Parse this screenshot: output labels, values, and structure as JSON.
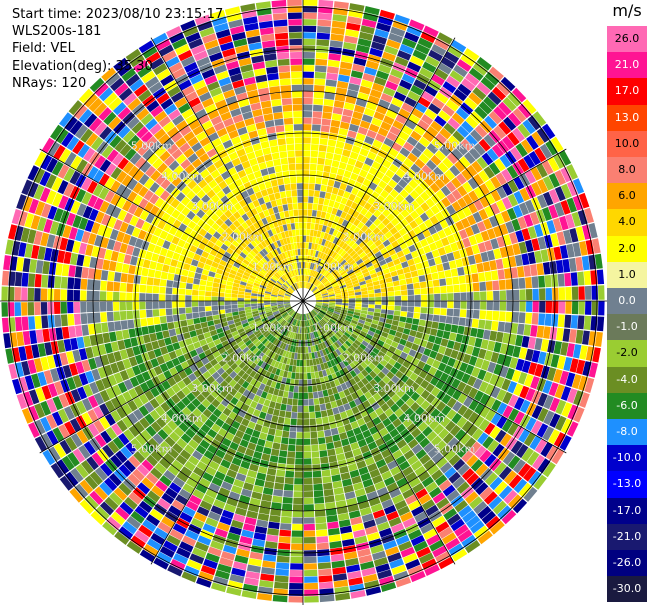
{
  "header": {
    "start_time": "Start time: 2023/08/10 23:15:17",
    "instrument": "WLS200s-181",
    "field": "Field: VEL",
    "elevation": "Elevation(deg): 35.30",
    "nrays": "NRays: 120"
  },
  "colorbar": {
    "unit": "m/s",
    "entries": [
      {
        "label": "26.0",
        "color": "#ff69b4"
      },
      {
        "label": "21.0",
        "color": "#ff1493"
      },
      {
        "label": "17.0",
        "color": "#ff0000"
      },
      {
        "label": "13.0",
        "color": "#ff4500"
      },
      {
        "label": "10.0",
        "color": "#ff6347"
      },
      {
        "label": "8.0",
        "color": "#fa8072"
      },
      {
        "label": "6.0",
        "color": "#ffa500"
      },
      {
        "label": "4.0",
        "color": "#ffd700"
      },
      {
        "label": "2.0",
        "color": "#ffff00"
      },
      {
        "label": "1.0",
        "color": "#f5f5a0"
      },
      {
        "label": "0.0",
        "color": "#708090"
      },
      {
        "label": "-1.0",
        "color": "#6b7a5a"
      },
      {
        "label": "-2.0",
        "color": "#9acd32"
      },
      {
        "label": "-4.0",
        "color": "#6b8e23"
      },
      {
        "label": "-6.0",
        "color": "#228b22"
      },
      {
        "label": "-8.0",
        "color": "#1e90ff"
      },
      {
        "label": "-10.0",
        "color": "#0000cd"
      },
      {
        "label": "-13.0",
        "color": "#0000ff"
      },
      {
        "label": "-17.0",
        "color": "#00008b"
      },
      {
        "label": "-21.0",
        "color": "#191970"
      },
      {
        "label": "-26.0",
        "color": "#000080"
      },
      {
        "label": "-30.0",
        "color": "#1a1a40"
      }
    ]
  },
  "map": {
    "range_ring_labels": [
      "1.00km",
      "2.00km",
      "3.00km",
      "4.00km",
      "5.00km"
    ],
    "spoke_angles_deg": [
      0,
      30,
      60,
      90,
      120,
      150,
      180,
      210,
      240,
      270,
      300,
      330
    ]
  }
}
